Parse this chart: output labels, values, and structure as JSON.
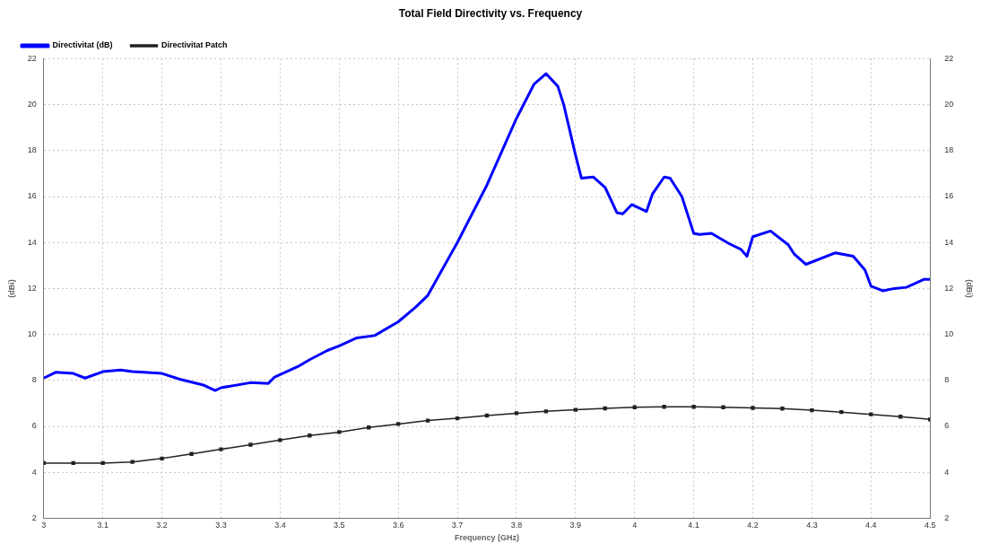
{
  "chart_data": {
    "type": "line",
    "title": "Total Field Directivity vs. Frequency",
    "xlabel": "Frequency (GHz)",
    "ylabel": "(dBi)",
    "y2label": "(dBi)",
    "xlim": [
      3,
      4.5
    ],
    "xticks": [
      3,
      3.1,
      3.2,
      3.3,
      3.4,
      3.5,
      3.6,
      3.7,
      3.8,
      3.9,
      4,
      4.1,
      4.2,
      4.3,
      4.4,
      4.5
    ],
    "ylim": [
      2,
      22
    ],
    "yticks": [
      2,
      4,
      6,
      8,
      10,
      12,
      14,
      16,
      18,
      20,
      22
    ],
    "y2lim": [
      2,
      22
    ],
    "y2ticks": [
      2,
      4,
      6,
      8,
      10,
      12,
      14,
      16,
      18,
      20,
      22
    ],
    "grid": true,
    "legend": "top left",
    "series": [
      {
        "name": "Directivitat (dB)",
        "color": "#0000ff",
        "marker": "none",
        "x": [
          3,
          3.02,
          3.05,
          3.07,
          3.1,
          3.13,
          3.15,
          3.2,
          3.23,
          3.27,
          3.29,
          3.3,
          3.35,
          3.38,
          3.39,
          3.43,
          3.45,
          3.48,
          3.5,
          3.53,
          3.56,
          3.6,
          3.63,
          3.65,
          3.7,
          3.75,
          3.8,
          3.83,
          3.85,
          3.87,
          3.88,
          3.9,
          3.91,
          3.93,
          3.95,
          3.97,
          3.98,
          3.995,
          4.02,
          4.03,
          4.05,
          4.06,
          4.08,
          4.1,
          4.11,
          4.13,
          4.16,
          4.18,
          4.19,
          4.2,
          4.23,
          4.26,
          4.27,
          4.29,
          4.34,
          4.37,
          4.39,
          4.4,
          4.42,
          4.44,
          4.46,
          4.49,
          4.5
        ],
        "values": [
          8.1,
          8.35,
          8.3,
          8.1,
          8.38,
          8.45,
          8.38,
          8.3,
          8.05,
          7.8,
          7.56,
          7.68,
          7.9,
          7.87,
          8.13,
          8.6,
          8.9,
          9.3,
          9.5,
          9.85,
          9.95,
          10.55,
          11.2,
          11.7,
          14,
          16.5,
          19.4,
          20.9,
          21.35,
          20.8,
          20,
          17.8,
          16.8,
          16.85,
          16.4,
          15.3,
          15.25,
          15.65,
          15.35,
          16.1,
          16.85,
          16.8,
          16,
          14.4,
          14.35,
          14.4,
          13.95,
          13.7,
          13.4,
          14.25,
          14.5,
          13.9,
          13.5,
          13.05,
          13.55,
          13.4,
          12.8,
          12.1,
          11.9,
          12,
          12.05,
          12.4,
          12.4
        ]
      },
      {
        "name": "Directivitat Patch",
        "color": "#222222",
        "marker": "square",
        "x": [
          3,
          3.05,
          3.1,
          3.15,
          3.2,
          3.25,
          3.3,
          3.35,
          3.4,
          3.45,
          3.5,
          3.55,
          3.6,
          3.65,
          3.7,
          3.75,
          3.8,
          3.85,
          3.9,
          3.95,
          4,
          4.05,
          4.1,
          4.15,
          4.2,
          4.25,
          4.3,
          4.35,
          4.4,
          4.45,
          4.5
        ],
        "values": [
          4.4,
          4.4,
          4.4,
          4.45,
          4.6,
          4.8,
          5,
          5.2,
          5.4,
          5.6,
          5.75,
          5.95,
          6.1,
          6.25,
          6.35,
          6.47,
          6.57,
          6.65,
          6.72,
          6.78,
          6.83,
          6.85,
          6.85,
          6.83,
          6.8,
          6.77,
          6.7,
          6.62,
          6.52,
          6.42,
          6.3
        ]
      }
    ]
  }
}
